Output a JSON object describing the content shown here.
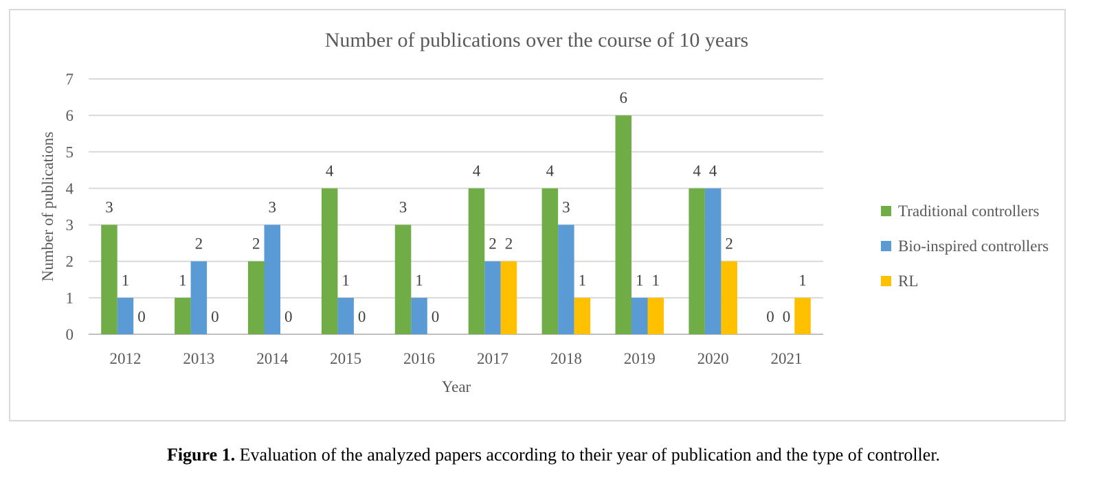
{
  "chart_data": {
    "type": "bar",
    "title": "Number of publications over the course of 10 years",
    "xlabel": "Year",
    "ylabel": "Number of publications",
    "ylim": [
      0,
      7
    ],
    "yticks": [
      0,
      1,
      2,
      3,
      4,
      5,
      6,
      7
    ],
    "grid": true,
    "legend_position": "right",
    "categories": [
      "2012",
      "2013",
      "2014",
      "2015",
      "2016",
      "2017",
      "2018",
      "2019",
      "2020",
      "2021"
    ],
    "series": [
      {
        "name": "Traditional controllers",
        "color": "#70ad47",
        "values": [
          3,
          1,
          2,
          4,
          3,
          4,
          4,
          6,
          4,
          0
        ]
      },
      {
        "name": "Bio-inspired controllers",
        "color": "#5b9bd5",
        "values": [
          1,
          2,
          3,
          1,
          1,
          2,
          3,
          1,
          4,
          0
        ]
      },
      {
        "name": "RL",
        "color": "#ffc000",
        "values": [
          0,
          0,
          0,
          0,
          0,
          2,
          1,
          1,
          2,
          1
        ]
      }
    ]
  },
  "caption": {
    "label": "Figure 1.",
    "text": " Evaluation of the analyzed papers according to their year of publication and the type of controller."
  }
}
